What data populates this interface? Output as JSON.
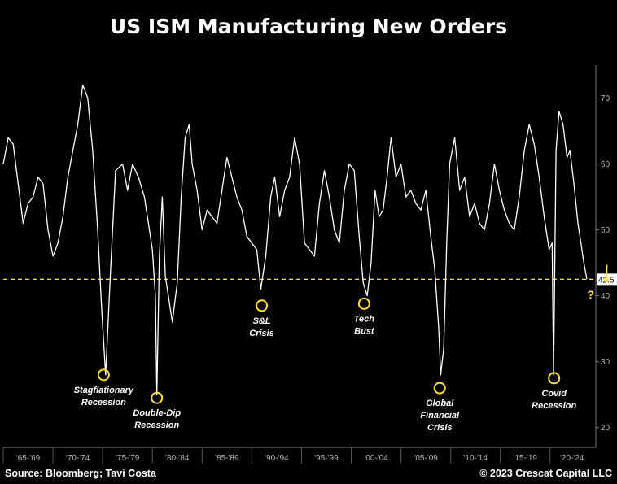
{
  "title": "US ISM Manufacturing New Orders",
  "footer": {
    "source": "Source: Bloomberg; Tavi Costa",
    "copyright": "© 2023 Crescat Capital LLC"
  },
  "chart_data": {
    "type": "line",
    "title": "US ISM Manufacturing New Orders",
    "ylim": [
      17,
      75
    ],
    "y_ticks": [
      20,
      30,
      40,
      50,
      60,
      70
    ],
    "x_period_labels": [
      "'65-'69",
      "'70-'74",
      "'75-'79",
      "'80-'84",
      "'85-'89",
      "'90-'94",
      "'95-'99",
      "'00-'04",
      "'05-'09",
      "'10-'14",
      "'15-'19",
      "'20-'24"
    ],
    "xlim": [
      1965,
      2024.6
    ],
    "latest_value": 42.5,
    "latest_label": "42.5",
    "reference_line": 42.5,
    "series": [
      {
        "x": [
          1965.0,
          1965.5,
          1966.0,
          1966.5,
          1967.0,
          1967.5,
          1968.0,
          1968.5,
          1969.0,
          1969.5,
          1970.0,
          1970.5,
          1971.0,
          1971.5,
          1972.0,
          1972.5,
          1973.0,
          1973.5,
          1974.0,
          1974.5,
          1974.9,
          1975.3,
          1975.8,
          1976.3,
          1977.0,
          1977.5,
          1978.0,
          1978.6,
          1979.2,
          1979.7,
          1980.0,
          1980.3,
          1980.45,
          1980.7,
          1981.0,
          1981.3,
          1981.6,
          1982.0,
          1982.5,
          1982.9,
          1983.3,
          1983.7,
          1984.0,
          1984.5,
          1985.0,
          1985.5,
          1986.0,
          1986.5,
          1987.0,
          1987.5,
          1988.0,
          1988.5,
          1989.0,
          1989.5,
          1990.0,
          1990.5,
          1990.9,
          1991.4,
          1991.9,
          1992.3,
          1992.8,
          1993.3,
          1993.8,
          1994.3,
          1994.8,
          1995.3,
          1995.8,
          1996.3,
          1996.8,
          1997.3,
          1997.8,
          1998.3,
          1998.8,
          1999.3,
          1999.8,
          2000.3,
          2000.8,
          2001.2,
          2001.6,
          2002.0,
          2002.4,
          2002.8,
          2003.2,
          2003.6,
          2004.0,
          2004.5,
          2005.0,
          2005.5,
          2006.0,
          2006.5,
          2007.0,
          2007.5,
          2008.0,
          2008.4,
          2008.8,
          2009.0,
          2009.3,
          2009.6,
          2009.9,
          2010.4,
          2010.9,
          2011.4,
          2011.9,
          2012.4,
          2012.9,
          2013.4,
          2013.9,
          2014.4,
          2014.9,
          2015.4,
          2015.9,
          2016.4,
          2016.9,
          2017.4,
          2017.9,
          2018.4,
          2018.9,
          2019.4,
          2019.9,
          2020.2,
          2020.35,
          2020.6,
          2020.9,
          2021.3,
          2021.7,
          2022.0,
          2022.4,
          2022.8,
          2023.1,
          2023.4,
          2023.7
        ],
        "y": [
          60,
          64,
          63,
          57,
          51,
          54,
          55,
          58,
          57,
          50,
          46,
          48,
          52,
          58,
          62,
          66,
          72,
          70,
          62,
          50,
          38,
          28,
          44,
          59,
          60,
          56,
          60,
          58,
          55,
          50,
          47,
          40,
          25,
          46,
          55,
          43,
          40,
          36,
          42,
          55,
          64,
          66,
          60,
          56,
          50,
          53,
          52,
          51,
          56,
          61,
          58,
          55,
          53,
          49,
          48,
          47,
          41,
          46,
          55,
          58,
          52,
          56,
          58,
          64,
          60,
          48,
          47,
          46,
          54,
          59,
          55,
          50,
          48,
          56,
          60,
          59,
          49,
          42,
          40,
          45,
          56,
          52,
          53,
          58,
          64,
          58,
          60,
          55,
          56,
          54,
          53,
          56,
          49,
          44,
          35,
          28,
          32,
          48,
          60,
          64,
          56,
          58,
          52,
          54,
          51,
          50,
          54,
          60,
          56,
          53,
          51,
          50,
          55,
          62,
          66,
          63,
          58,
          52,
          47,
          48,
          28,
          62,
          68,
          66,
          61,
          62,
          57,
          51,
          48,
          45,
          42.5
        ]
      }
    ],
    "annotations": [
      {
        "label": "Stagflationary Recession",
        "x": 1975.1,
        "y": 28
      },
      {
        "label": "Double-Dip Recession",
        "x": 1980.45,
        "y": 24.5
      },
      {
        "label": "S&L Crisis",
        "x": 1991.0,
        "y": 38.5
      },
      {
        "label": "Tech Bust",
        "x": 2001.3,
        "y": 38.8
      },
      {
        "label": "Global Financial Crisis",
        "x": 2008.9,
        "y": 26
      },
      {
        "label": "Covid Recession",
        "x": 2020.4,
        "y": 27.5
      }
    ],
    "outlook_mark": "?",
    "colors": {
      "line": "#ffffff",
      "accent": "#ffe135",
      "axis": "#777777",
      "tick": "#b8b8b8",
      "background": "#000000"
    }
  }
}
